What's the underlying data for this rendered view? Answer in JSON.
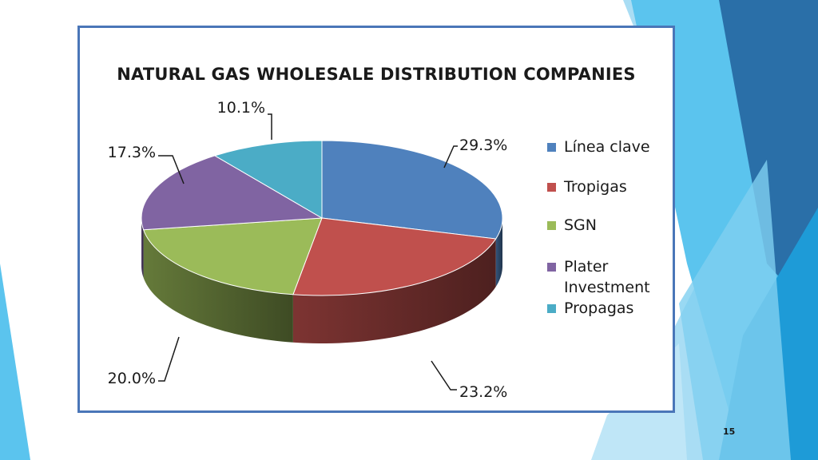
{
  "slide": {
    "page_number": "15",
    "accent_colors": [
      "#1e9bd7",
      "#5bc4ee",
      "#2a6fa8",
      "#bfe6f7"
    ]
  },
  "chart_data": {
    "type": "pie",
    "title": "NATURAL GAS WHOLESALE DISTRIBUTION COMPANIES",
    "style": "3d",
    "legend_position": "right",
    "slices": [
      {
        "name": "Línea clave",
        "value": 29.3,
        "label": "29.3%",
        "color": "#4f81bd"
      },
      {
        "name": "Tropigas",
        "value": 23.2,
        "label": "23.2%",
        "color": "#c0504d"
      },
      {
        "name": "SGN",
        "value": 20.0,
        "label": "20.0%",
        "color": "#9bbb59"
      },
      {
        "name": "Plater Investment",
        "value": 17.3,
        "label": "17.3%",
        "color": "#8064a2"
      },
      {
        "name": "Propagas",
        "value": 10.1,
        "label": "10.1%",
        "color": "#4bacc6"
      }
    ]
  }
}
